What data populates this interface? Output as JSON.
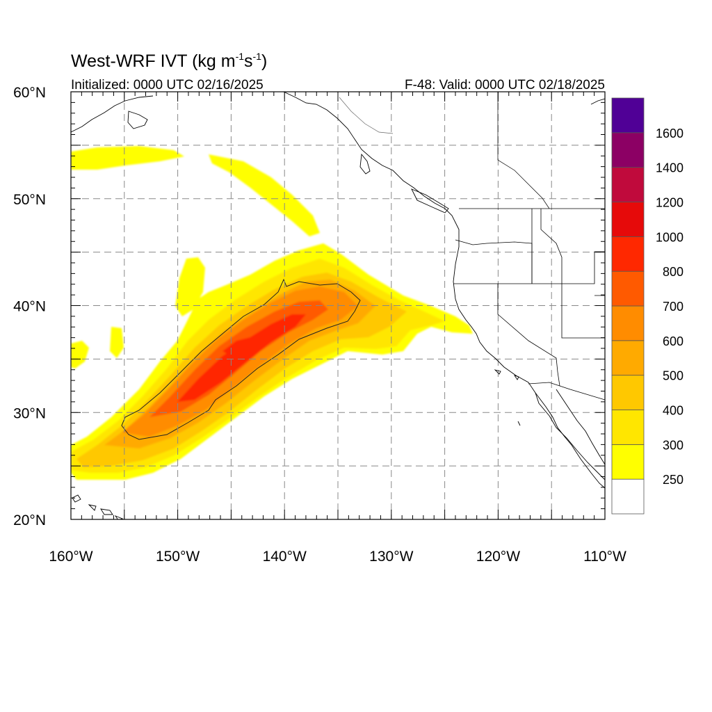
{
  "title": {
    "main": "West-WRF IVT (kg m",
    "exp1": "-1",
    "mid": "s",
    "exp2": "-1",
    "close": ")"
  },
  "subtitle_left": "Initialized: 0000 UTC 02/16/2025",
  "subtitle_right": "F-48: Valid: 0000 UTC 02/18/2025",
  "map": {
    "lon_range": [
      -160,
      -110
    ],
    "lat_range": [
      20,
      60
    ],
    "x_ticks": [
      {
        "value": -160,
        "label": "160°W"
      },
      {
        "value": -150,
        "label": "150°W"
      },
      {
        "value": -140,
        "label": "140°W"
      },
      {
        "value": -130,
        "label": "130°W"
      },
      {
        "value": -120,
        "label": "120°W"
      },
      {
        "value": -110,
        "label": "110°W"
      }
    ],
    "y_ticks": [
      {
        "value": 60,
        "label": "60°N"
      },
      {
        "value": 50,
        "label": "50°N"
      },
      {
        "value": 40,
        "label": "40°N"
      },
      {
        "value": 30,
        "label": "30°N"
      },
      {
        "value": 20,
        "label": "20°N"
      }
    ],
    "grid": true,
    "grid_step_deg": 5
  },
  "colorbar": {
    "levels": [
      250,
      300,
      400,
      500,
      600,
      700,
      800,
      1000,
      1200,
      1400,
      1600
    ],
    "labels": [
      "250",
      "300",
      "400",
      "500",
      "600",
      "700",
      "800",
      "1000",
      "1200",
      "1400",
      "1600"
    ],
    "colors": [
      "#ffffff",
      "#ffff00",
      "#ffe600",
      "#ffc800",
      "#ffaa00",
      "#ff8c00",
      "#ff5a00",
      "#ff2800",
      "#e60a0a",
      "#c00a3c",
      "#8c0064",
      "#500096"
    ]
  }
}
